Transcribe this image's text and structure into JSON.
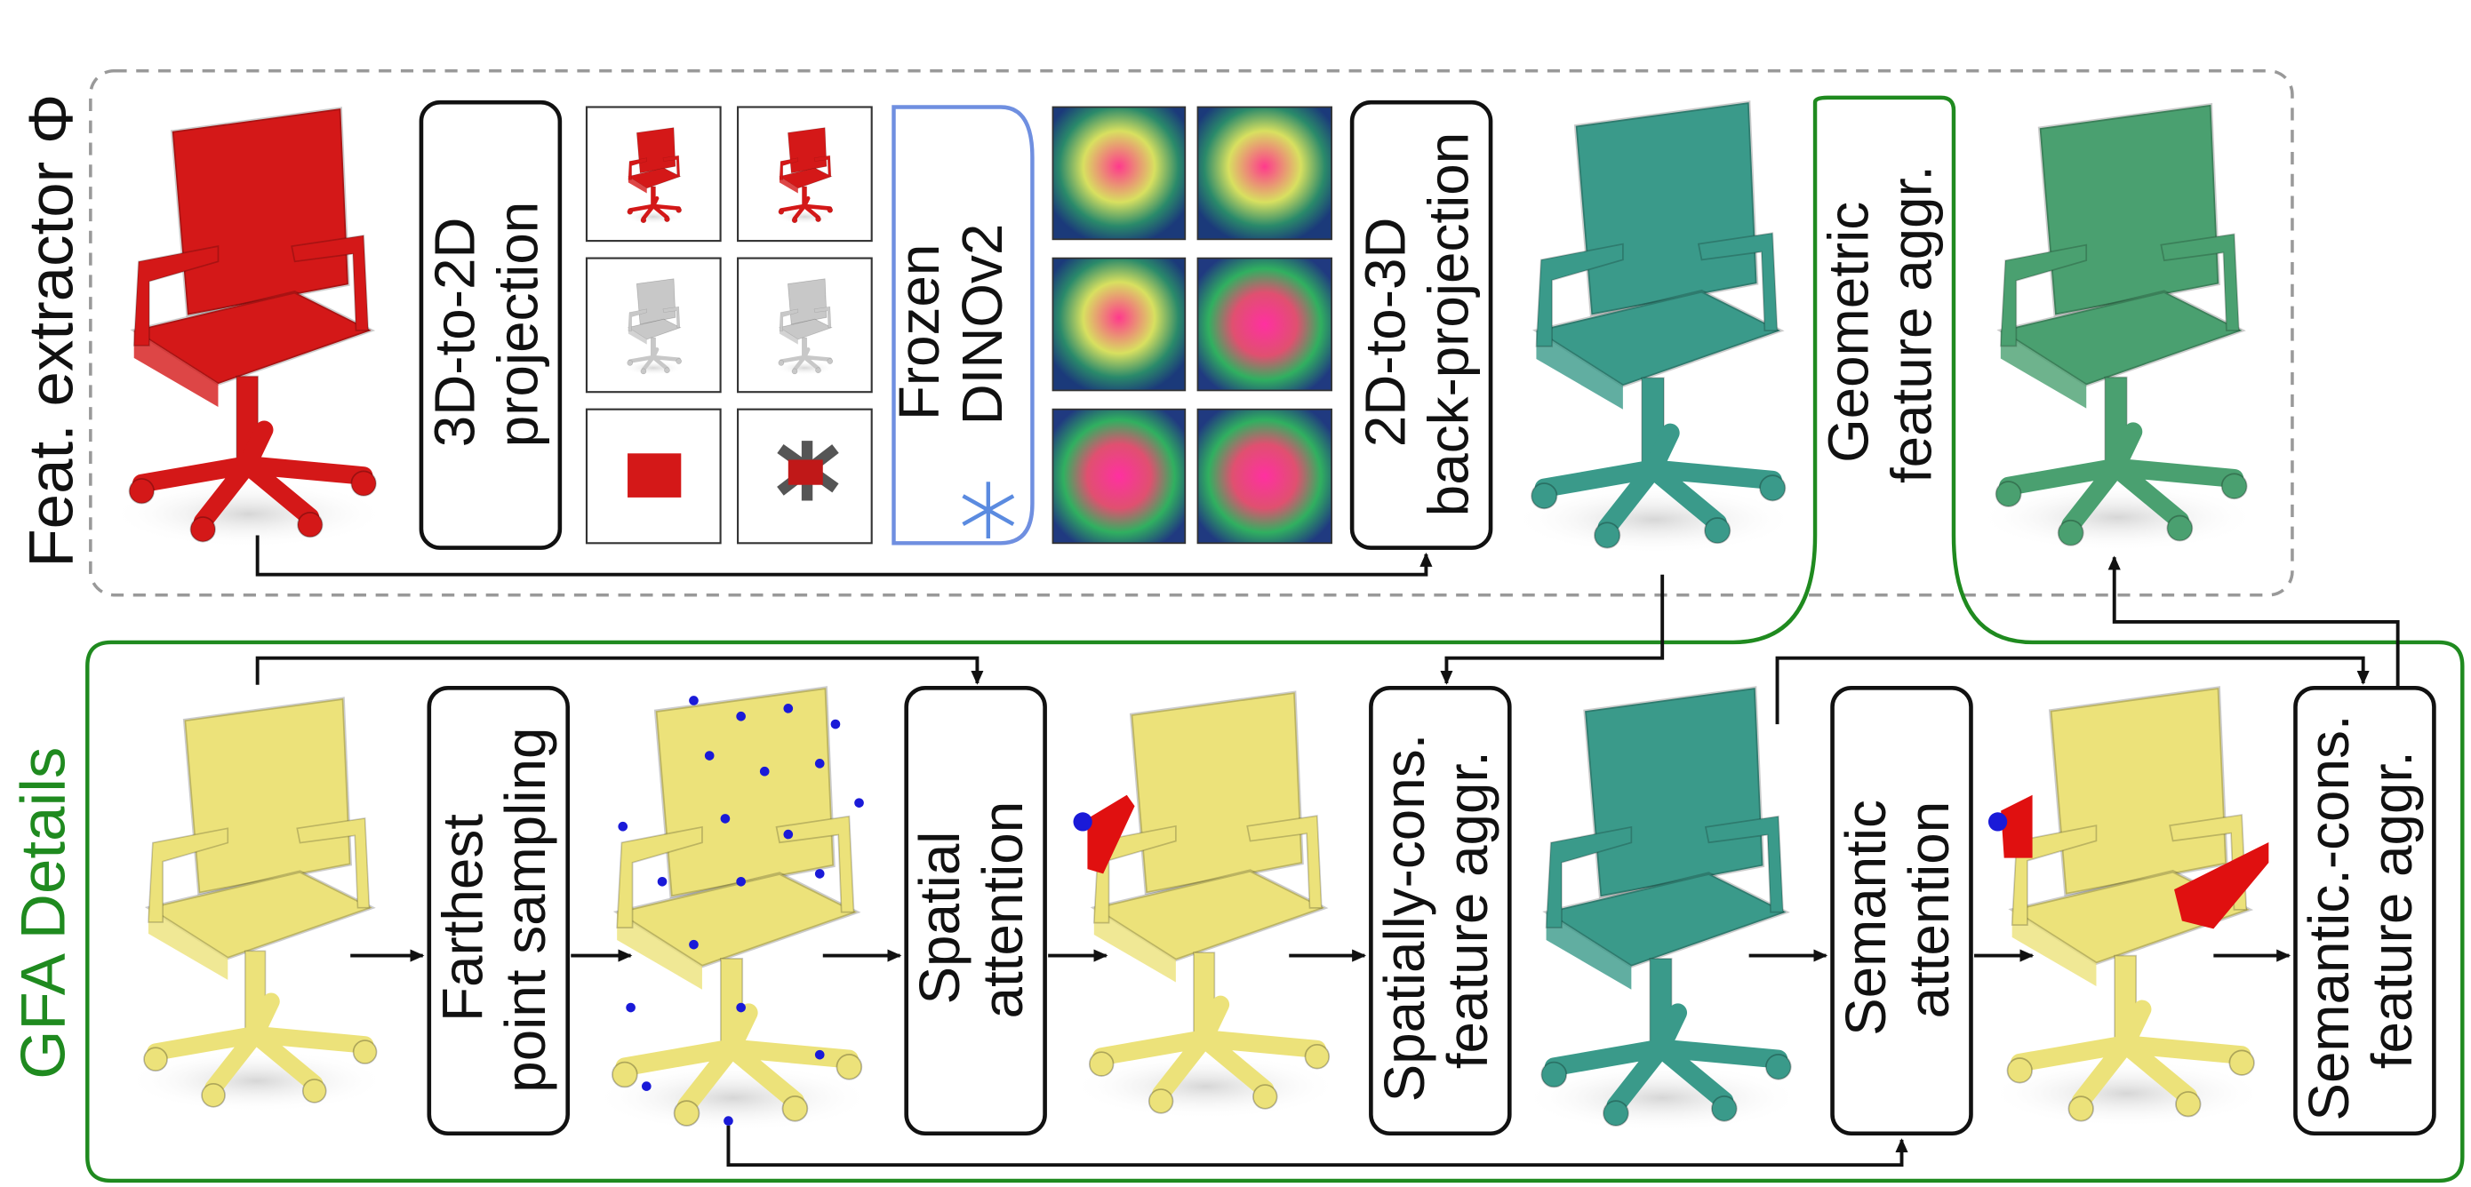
{
  "feature_extractor": {
    "label": "Feat. extractor Φ",
    "boxes": [
      {
        "lines": [
          "3D-to-2D",
          "projection"
        ]
      },
      {
        "lines": [
          "Frozen",
          "DINOv2"
        ]
      },
      {
        "lines": [
          "2D-to-3D",
          "back-projection"
        ]
      },
      {
        "lines": [
          "Geometric",
          "feature aggr."
        ]
      }
    ]
  },
  "gfa_details": {
    "label": "GFA Details",
    "boxes": [
      {
        "lines": [
          "Farthest",
          "point sampling"
        ]
      },
      {
        "lines": [
          "Spatial",
          "attention"
        ]
      },
      {
        "lines": [
          "Spatially-cons.",
          "feature aggr."
        ]
      },
      {
        "lines": [
          "Semantic",
          "attention"
        ]
      },
      {
        "lines": [
          "Semantic.-cons.",
          "feature aggr."
        ]
      }
    ]
  }
}
